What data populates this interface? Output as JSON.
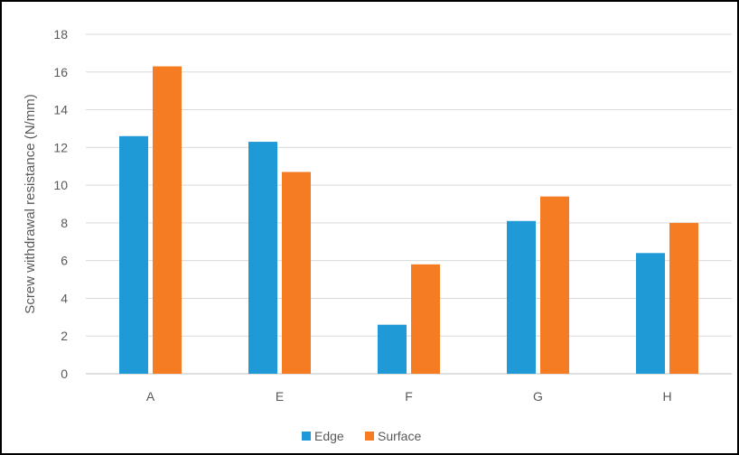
{
  "chart_data": {
    "type": "bar",
    "title": "",
    "xlabel": "",
    "ylabel": "Screw withdrawal resistance (N/mm)",
    "categories": [
      "A",
      "E",
      "F",
      "G",
      "H"
    ],
    "series": [
      {
        "name": "Edge",
        "color": "#1f9ad6",
        "values": [
          12.6,
          12.3,
          2.6,
          8.1,
          6.4
        ]
      },
      {
        "name": "Surface",
        "color": "#f57c23",
        "values": [
          16.3,
          10.7,
          5.8,
          9.4,
          8.0
        ]
      }
    ],
    "ylim": [
      0,
      18
    ],
    "yticks": [
      "0",
      "2",
      "4",
      "6",
      "8",
      "10",
      "12",
      "14",
      "16",
      "18"
    ],
    "grid": true,
    "legend": "bottom-center"
  }
}
